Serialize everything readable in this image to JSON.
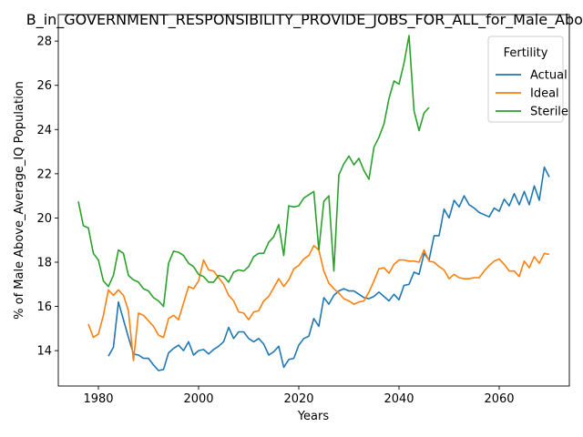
{
  "chart_data": {
    "type": "line",
    "title": "B_in_GOVERNMENT_RESPONSIBILITY_PROVIDE_JOBS_FOR_ALL_for_Male_Above",
    "xlabel": "Years",
    "ylabel": "% of Male Above_Average_IQ Population",
    "xlim": [
      1972,
      2074
    ],
    "ylim": [
      12.4,
      29.2
    ],
    "xticks": [
      1980,
      2000,
      2020,
      2040,
      2060
    ],
    "yticks": [
      14,
      16,
      18,
      20,
      22,
      24,
      26,
      28
    ],
    "grid": false,
    "legend": {
      "title": "Fertility",
      "position": "top-right"
    },
    "series": [
      {
        "name": "Actual",
        "color": "#1f77b4",
        "x": [
          1982,
          1983,
          1984,
          1985,
          1986,
          1987,
          1988,
          1989,
          1990,
          1991,
          1992,
          1993,
          1994,
          1995,
          1996,
          1997,
          1998,
          1999,
          2000,
          2001,
          2002,
          2003,
          2004,
          2005,
          2006,
          2007,
          2008,
          2009,
          2010,
          2011,
          2012,
          2013,
          2014,
          2015,
          2016,
          2017,
          2018,
          2019,
          2020,
          2021,
          2022,
          2023,
          2024,
          2025,
          2026,
          2027,
          2028,
          2029,
          2030,
          2031,
          2032,
          2033,
          2034,
          2035,
          2036,
          2037,
          2038,
          2039,
          2040,
          2041,
          2042,
          2043,
          2044,
          2045,
          2046,
          2047,
          2048,
          2049,
          2050,
          2051,
          2052,
          2053,
          2054,
          2055,
          2056,
          2057,
          2058,
          2059,
          2060,
          2061,
          2062,
          2063,
          2064,
          2065,
          2066,
          2067,
          2068,
          2069,
          2070
        ],
        "values": [
          13.75,
          14.15,
          16.2,
          15.4,
          14.6,
          13.85,
          13.8,
          13.65,
          13.65,
          13.35,
          13.1,
          13.15,
          13.9,
          14.1,
          14.25,
          14.0,
          14.4,
          13.8,
          14.0,
          14.05,
          13.85,
          14.05,
          14.2,
          14.4,
          15.05,
          14.55,
          14.85,
          14.85,
          14.55,
          14.4,
          14.55,
          14.3,
          13.8,
          13.95,
          14.2,
          13.25,
          13.6,
          13.65,
          14.25,
          14.55,
          14.65,
          15.45,
          15.1,
          16.4,
          16.1,
          16.5,
          16.7,
          16.8,
          16.7,
          16.7,
          16.55,
          16.4,
          16.35,
          16.45,
          16.65,
          16.45,
          16.25,
          16.55,
          16.3,
          16.95,
          17.0,
          17.55,
          17.45,
          18.4,
          18.1,
          19.2,
          19.2,
          20.4,
          20.0,
          20.8,
          20.5,
          21.0,
          20.6,
          20.45,
          20.25,
          20.15,
          20.05,
          20.45,
          20.3,
          20.85,
          20.55,
          21.1,
          20.6,
          21.2,
          20.6,
          21.45,
          20.8,
          22.3,
          21.85
        ]
      },
      {
        "name": "Ideal",
        "color": "#ff7f0e",
        "x": [
          1978,
          1979,
          1980,
          1981,
          1982,
          1983,
          1984,
          1985,
          1986,
          1987,
          1988,
          1989,
          1990,
          1991,
          1992,
          1993,
          1994,
          1995,
          1996,
          1997,
          1998,
          1999,
          2000,
          2001,
          2002,
          2003,
          2004,
          2005,
          2006,
          2007,
          2008,
          2009,
          2010,
          2011,
          2012,
          2013,
          2014,
          2015,
          2016,
          2017,
          2018,
          2019,
          2020,
          2021,
          2022,
          2023,
          2024,
          2025,
          2026,
          2027,
          2028,
          2029,
          2030,
          2031,
          2032,
          2033,
          2034,
          2035,
          2036,
          2037,
          2038,
          2039,
          2040,
          2041,
          2042,
          2043,
          2044,
          2045,
          2046,
          2047,
          2048,
          2049,
          2050,
          2051,
          2052,
          2053,
          2054,
          2055,
          2056,
          2057,
          2058,
          2059,
          2060,
          2061,
          2062,
          2063,
          2064,
          2065,
          2066,
          2067,
          2068,
          2069,
          2070
        ],
        "values": [
          15.2,
          14.6,
          14.75,
          15.6,
          16.75,
          16.5,
          16.75,
          16.5,
          15.8,
          13.55,
          15.7,
          15.6,
          15.35,
          15.1,
          14.7,
          14.6,
          15.45,
          15.6,
          15.4,
          16.15,
          16.9,
          16.8,
          17.15,
          18.1,
          17.65,
          17.6,
          17.3,
          17.0,
          16.5,
          16.25,
          15.75,
          15.7,
          15.4,
          15.75,
          15.8,
          16.25,
          16.45,
          16.85,
          17.25,
          16.9,
          17.2,
          17.7,
          17.85,
          18.15,
          18.3,
          18.75,
          18.55,
          17.6,
          17.05,
          16.8,
          16.6,
          16.35,
          16.25,
          16.1,
          16.2,
          16.25,
          16.65,
          17.15,
          17.7,
          17.75,
          17.5,
          17.9,
          18.1,
          18.1,
          18.05,
          18.05,
          18.0,
          18.55,
          18.05,
          18.0,
          17.8,
          17.65,
          17.25,
          17.45,
          17.3,
          17.25,
          17.25,
          17.3,
          17.3,
          17.6,
          17.85,
          18.05,
          18.15,
          17.9,
          17.6,
          17.6,
          17.35,
          18.05,
          17.75,
          18.25,
          17.95,
          18.4,
          18.35
        ]
      },
      {
        "name": "Sterile",
        "color": "#2ca02c",
        "x": [
          1976,
          1977,
          1978,
          1979,
          1980,
          1981,
          1982,
          1983,
          1984,
          1985,
          1986,
          1987,
          1988,
          1989,
          1990,
          1991,
          1992,
          1993,
          1994,
          1995,
          1996,
          1997,
          1998,
          1999,
          2000,
          2001,
          2002,
          2003,
          2004,
          2005,
          2006,
          2007,
          2008,
          2009,
          2010,
          2011,
          2012,
          2013,
          2014,
          2015,
          2016,
          2017,
          2018,
          2019,
          2020,
          2021,
          2022,
          2023,
          2024,
          2025,
          2026,
          2027,
          2028,
          2029,
          2030,
          2031,
          2032,
          2033,
          2034,
          2035,
          2036,
          2037,
          2038,
          2039,
          2040,
          2041,
          2042,
          2043,
          2044,
          2045,
          2046
        ],
        "values": [
          20.75,
          19.65,
          19.55,
          18.4,
          18.1,
          17.15,
          16.9,
          17.4,
          18.55,
          18.4,
          17.4,
          17.2,
          17.1,
          16.8,
          16.7,
          16.4,
          16.25,
          16.0,
          17.95,
          18.5,
          18.45,
          18.3,
          17.95,
          17.8,
          17.45,
          17.35,
          17.1,
          17.1,
          17.4,
          17.35,
          17.1,
          17.55,
          17.65,
          17.6,
          17.8,
          18.25,
          18.4,
          18.4,
          18.9,
          19.15,
          19.7,
          18.3,
          20.55,
          20.5,
          20.55,
          20.9,
          21.05,
          21.2,
          18.55,
          20.75,
          21.0,
          17.6,
          21.95,
          22.45,
          22.8,
          22.4,
          22.7,
          22.15,
          21.75,
          23.2,
          23.65,
          24.25,
          25.4,
          26.2,
          26.05,
          27.0,
          28.25,
          24.85,
          23.95,
          24.75,
          25.0
        ]
      }
    ]
  }
}
